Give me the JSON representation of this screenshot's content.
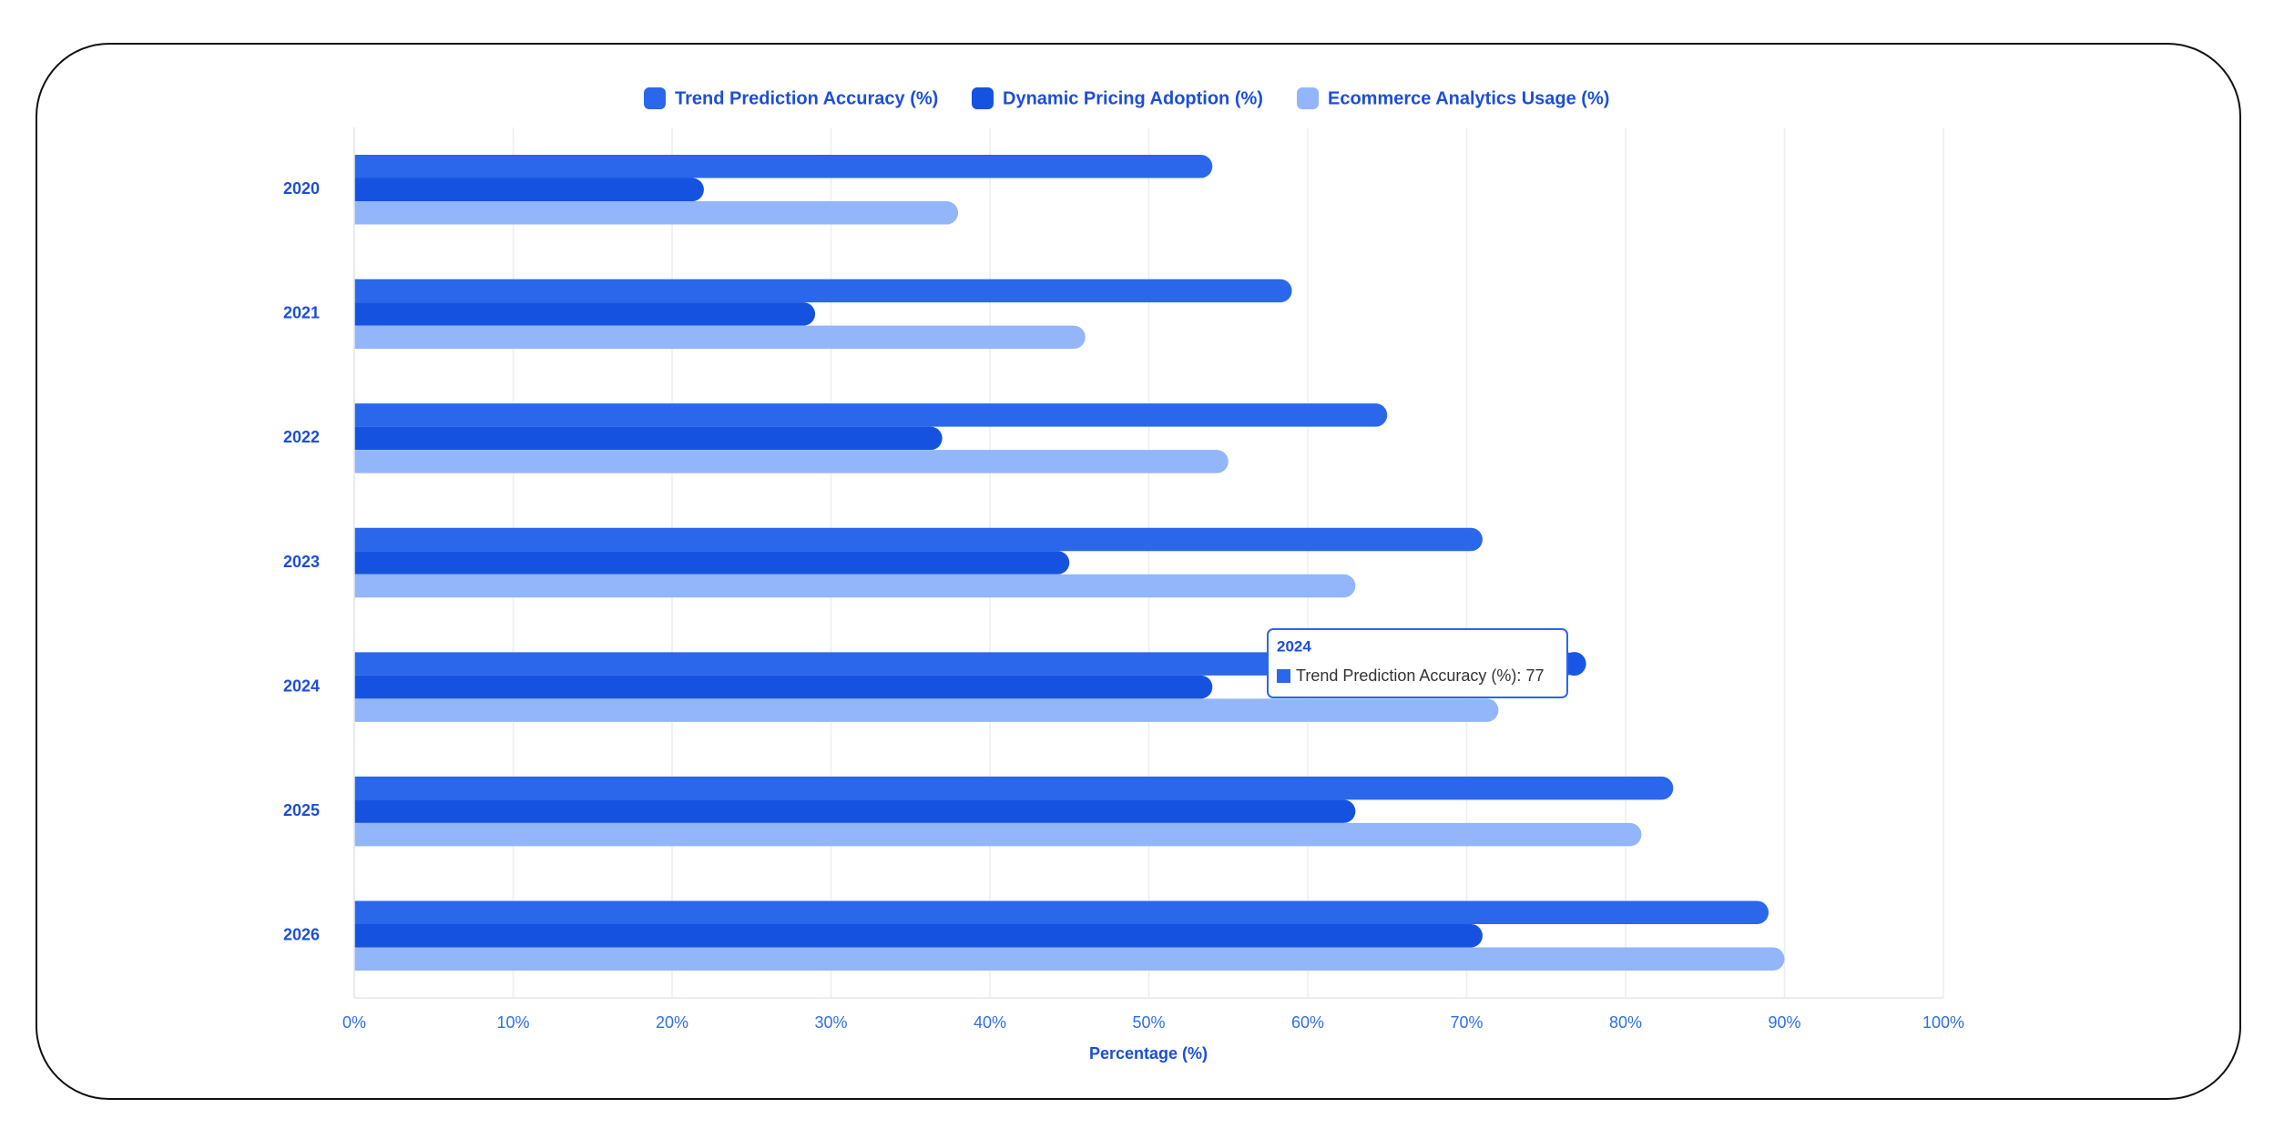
{
  "chart_data": {
    "type": "bar",
    "orientation": "horizontal",
    "x_label": "Percentage (%)",
    "categories": [
      "2020",
      "2021",
      "2022",
      "2023",
      "2024",
      "2025",
      "2026"
    ],
    "series": [
      {
        "name": "Trend Prediction Accuracy (%)",
        "color": "#2a67ea",
        "values": [
          54,
          59,
          65,
          71,
          77,
          83,
          89
        ]
      },
      {
        "name": "Dynamic Pricing Adoption (%)",
        "color": "#1552e0",
        "values": [
          22,
          29,
          37,
          45,
          54,
          63,
          71
        ]
      },
      {
        "name": "Ecommerce Analytics Usage (%)",
        "color": "#93b5f9",
        "values": [
          38,
          46,
          55,
          63,
          72,
          81,
          90
        ]
      }
    ],
    "xlim": [
      0,
      100
    ],
    "xticks": [
      {
        "value": 0,
        "label": "0%"
      },
      {
        "value": 10,
        "label": "10%"
      },
      {
        "value": 20,
        "label": "20%"
      },
      {
        "value": 30,
        "label": "30%"
      },
      {
        "value": 40,
        "label": "40%"
      },
      {
        "value": 50,
        "label": "50%"
      },
      {
        "value": 60,
        "label": "60%"
      },
      {
        "value": 70,
        "label": "70%"
      },
      {
        "value": 80,
        "label": "80%"
      },
      {
        "value": 90,
        "label": "90%"
      },
      {
        "value": 100,
        "label": "100%"
      }
    ],
    "grid": true,
    "legend": "top"
  }
}
